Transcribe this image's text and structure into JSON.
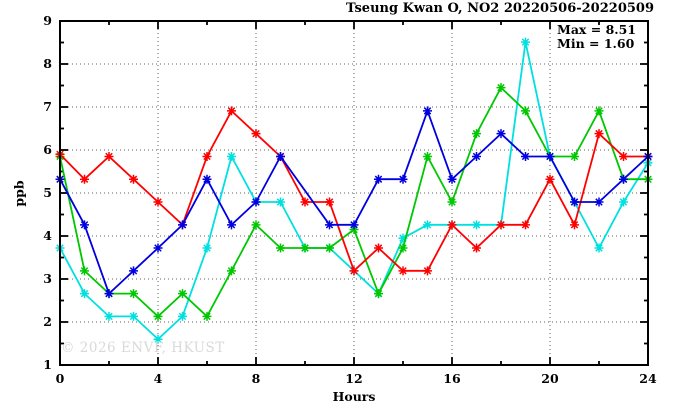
{
  "chart": {
    "title": "Tseung Kwan O, NO2 20220506-20220509",
    "stats": {
      "max": "Max = 8.51",
      "min": "Min = 1.60"
    },
    "xlabel": "Hours",
    "ylabel": "ppb"
  },
  "watermark": {
    "text": "© 2026 ENVF, HKUST"
  },
  "chart_data": {
    "type": "line",
    "title": "Tseung Kwan O, NO2 20220506-20220509",
    "xlabel": "Hours",
    "ylabel": "ppb",
    "xlim": [
      0,
      24
    ],
    "ylim": [
      1,
      9
    ],
    "x": [
      0,
      1,
      2,
      3,
      4,
      5,
      6,
      7,
      8,
      9,
      10,
      11,
      12,
      13,
      14,
      15,
      16,
      17,
      18,
      19,
      20,
      21,
      22,
      23,
      24
    ],
    "x_major_ticks": [
      0,
      4,
      8,
      12,
      16,
      20,
      24
    ],
    "x_minor_ticks": [
      2,
      6,
      10,
      14,
      18,
      22
    ],
    "y_major_ticks": [
      1,
      2,
      3,
      4,
      5,
      6,
      7,
      8,
      9
    ],
    "y_minor_ticks": [
      1.5,
      2.5,
      3.5,
      4.5,
      5.5,
      6.5,
      7.5,
      8.5
    ],
    "grid_x": [
      4,
      8,
      12,
      16,
      20
    ],
    "grid_y": [
      2,
      3,
      4,
      5,
      6,
      7,
      8
    ],
    "grid_color": "#606060",
    "border_color": "#000000",
    "legend_position": "none",
    "annotations": [
      "Max = 8.51",
      "Min = 1.60"
    ],
    "stats": {
      "max": 8.51,
      "min": 1.6
    },
    "series": [
      {
        "name": "red",
        "color": "#ff0000",
        "values": [
          5.9,
          5.32,
          5.85,
          5.32,
          4.79,
          4.26,
          5.85,
          6.91,
          6.38,
          5.85,
          4.79,
          4.79,
          3.19,
          3.72,
          3.19,
          3.19,
          4.26,
          3.72,
          4.26,
          4.26,
          5.32,
          4.26,
          6.38,
          5.85,
          5.85
        ]
      },
      {
        "name": "green",
        "color": "#00c800",
        "values": [
          5.85,
          3.19,
          2.66,
          2.66,
          2.13,
          2.66,
          2.13,
          3.19,
          4.26,
          3.72,
          3.72,
          3.72,
          4.15,
          2.66,
          3.72,
          5.85,
          4.79,
          6.38,
          7.45,
          6.91,
          5.85,
          5.85,
          6.91,
          5.32,
          5.32
        ]
      },
      {
        "name": "blue",
        "color": "#0000e0",
        "values": [
          5.32,
          4.26,
          2.66,
          3.19,
          3.72,
          4.26,
          5.32,
          4.26,
          4.79,
          5.85,
          null,
          4.26,
          4.26,
          5.32,
          5.32,
          6.91,
          5.32,
          5.85,
          6.38,
          5.85,
          5.85,
          4.79,
          4.79,
          5.32,
          5.85
        ]
      },
      {
        "name": "cyan",
        "color": "#00e0e0",
        "values": [
          3.72,
          2.66,
          2.13,
          2.13,
          1.6,
          2.13,
          3.72,
          5.85,
          4.79,
          4.79,
          3.72,
          3.72,
          3.19,
          2.66,
          3.95,
          4.26,
          4.26,
          4.26,
          4.26,
          8.51,
          5.85,
          4.79,
          3.72,
          4.79,
          5.7
        ]
      }
    ],
    "draw_order": [
      "cyan",
      "green",
      "red",
      "blue"
    ]
  }
}
